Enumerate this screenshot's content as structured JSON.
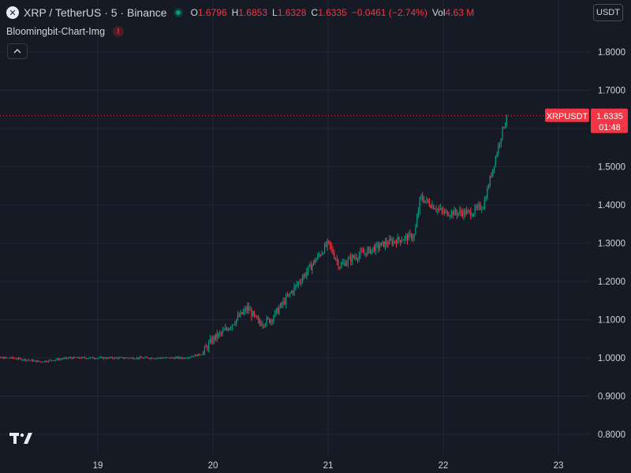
{
  "header": {
    "symbol_title": "XRP / TetherUS · 5 · Binance",
    "ohlc": [
      {
        "key": "O",
        "value": "1.6796"
      },
      {
        "key": "H",
        "value": "1.6853"
      },
      {
        "key": "L",
        "value": "1.6328"
      },
      {
        "key": "C",
        "value": "1.6335"
      },
      {
        "key": "",
        "value": "−0.0461 (−2.74%)"
      },
      {
        "key": "Vol",
        "value": "4.63 M"
      }
    ]
  },
  "indicator": {
    "name": "Bloomingbit-Chart-Img",
    "warning": "!"
  },
  "currency_button": {
    "label": "USDT"
  },
  "price_badge": {
    "symbol": "XRPUSDT",
    "price": "1.6335",
    "countdown": "01:48"
  },
  "colors": {
    "background": "#161a25",
    "grid": "#232733",
    "up": "#089981",
    "down": "#f23645",
    "text": "#d1d4dc"
  },
  "chart_data": {
    "type": "candlestick",
    "y_ticks": [
      "1.8000",
      "1.7000",
      "1.6000",
      "1.5000",
      "1.4000",
      "1.3000",
      "1.2000",
      "1.1000",
      "1.0000",
      "0.9000",
      "0.8000"
    ],
    "x_ticks": [
      "19",
      "20",
      "21",
      "22",
      "23"
    ],
    "ylim": [
      0.78,
      1.83
    ],
    "x": [
      "18",
      "18.25",
      "18.5",
      "18.75",
      "19",
      "19.25",
      "19.5",
      "19.75",
      "19.9",
      "20",
      "20.1",
      "20.3",
      "20.4",
      "20.5",
      "20.75",
      "21",
      "21.1",
      "21.2",
      "21.5",
      "21.75",
      "21.8",
      "22",
      "22.25",
      "22.35",
      "22.5",
      "22.55"
    ],
    "close": [
      1.0,
      1.0,
      0.99,
      1.0,
      1.0,
      1.0,
      1.0,
      1.0,
      1.01,
      1.05,
      1.07,
      1.13,
      1.09,
      1.1,
      1.2,
      1.3,
      1.24,
      1.26,
      1.3,
      1.32,
      1.42,
      1.38,
      1.38,
      1.4,
      1.58,
      1.6335
    ],
    "last_price": 1.6335
  }
}
